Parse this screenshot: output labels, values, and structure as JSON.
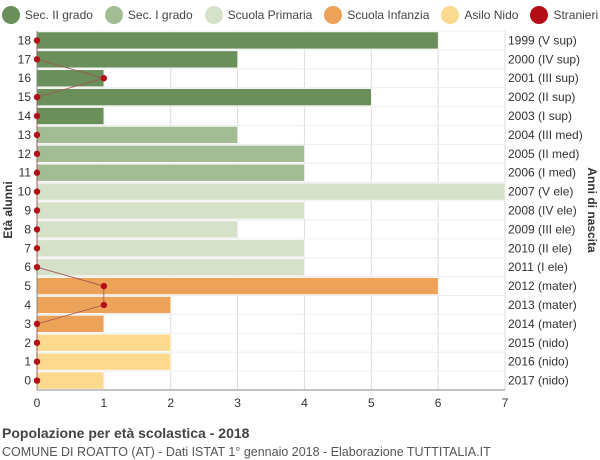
{
  "chart_data": {
    "type": "bar",
    "orientation": "horizontal",
    "title": "Popolazione per età scolastica - 2018",
    "subtitle": "COMUNE DI ROATTO (AT) - Dati ISTAT 1° gennaio 2018 - Elaborazione TUTTITALIA.IT",
    "ylabel_left": "Età alunni",
    "ylabel_right": "Anni di nascita",
    "xlim": [
      0,
      7
    ],
    "x_ticks": [
      0,
      1,
      2,
      3,
      4,
      5,
      6,
      7
    ],
    "grid": true,
    "legend_position": "top",
    "legend": [
      {
        "name": "Sec. II grado",
        "color": "#6b8f5a"
      },
      {
        "name": "Sec. I grado",
        "color": "#a2bc94"
      },
      {
        "name": "Scuola Primaria",
        "color": "#d5e1c9"
      },
      {
        "name": "Scuola Infanzia",
        "color": "#eda25a"
      },
      {
        "name": "Asilo Nido",
        "color": "#fbd98f"
      },
      {
        "name": "Stranieri",
        "color": "#b40f16"
      }
    ],
    "rows": [
      {
        "age": "18",
        "birth": "1999 (V sup)",
        "value": 6,
        "stranieri": 0,
        "group": 0
      },
      {
        "age": "17",
        "birth": "2000 (IV sup)",
        "value": 3,
        "stranieri": 0,
        "group": 0
      },
      {
        "age": "16",
        "birth": "2001 (III sup)",
        "value": 1,
        "stranieri": 1,
        "group": 0
      },
      {
        "age": "15",
        "birth": "2002 (II sup)",
        "value": 5,
        "stranieri": 0,
        "group": 0
      },
      {
        "age": "14",
        "birth": "2003 (I sup)",
        "value": 1,
        "stranieri": 0,
        "group": 0
      },
      {
        "age": "13",
        "birth": "2004 (III med)",
        "value": 3,
        "stranieri": 0,
        "group": 1
      },
      {
        "age": "12",
        "birth": "2005 (II med)",
        "value": 4,
        "stranieri": 0,
        "group": 1
      },
      {
        "age": "11",
        "birth": "2006 (I med)",
        "value": 4,
        "stranieri": 0,
        "group": 1
      },
      {
        "age": "10",
        "birth": "2007 (V ele)",
        "value": 7,
        "stranieri": 0,
        "group": 2
      },
      {
        "age": "9",
        "birth": "2008 (IV ele)",
        "value": 4,
        "stranieri": 0,
        "group": 2
      },
      {
        "age": "8",
        "birth": "2009 (III ele)",
        "value": 3,
        "stranieri": 0,
        "group": 2
      },
      {
        "age": "7",
        "birth": "2010 (II ele)",
        "value": 4,
        "stranieri": 0,
        "group": 2
      },
      {
        "age": "6",
        "birth": "2011 (I ele)",
        "value": 4,
        "stranieri": 0,
        "group": 2
      },
      {
        "age": "5",
        "birth": "2012 (mater)",
        "value": 6,
        "stranieri": 1,
        "group": 3
      },
      {
        "age": "4",
        "birth": "2013 (mater)",
        "value": 2,
        "stranieri": 1,
        "group": 3
      },
      {
        "age": "3",
        "birth": "2014 (mater)",
        "value": 1,
        "stranieri": 0,
        "group": 3
      },
      {
        "age": "2",
        "birth": "2015 (nido)",
        "value": 2,
        "stranieri": 0,
        "group": 4
      },
      {
        "age": "1",
        "birth": "2016 (nido)",
        "value": 2,
        "stranieri": 0,
        "group": 4
      },
      {
        "age": "0",
        "birth": "2017 (nido)",
        "value": 1,
        "stranieri": 0,
        "group": 4
      }
    ]
  }
}
